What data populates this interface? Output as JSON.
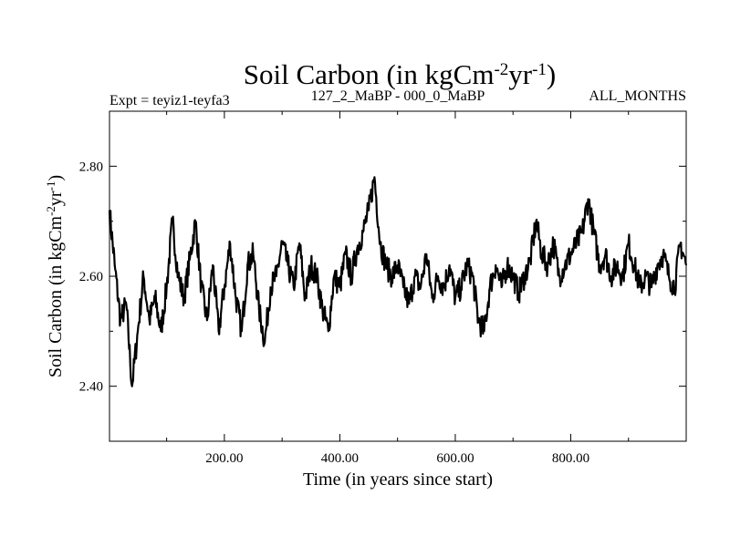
{
  "chart_data": {
    "type": "line",
    "title": "Soil Carbon (in kgCm",
    "title_exp1": "-2",
    "title_mid": "yr",
    "title_exp2": "-1",
    "title_end": ")",
    "subtitle_left": "Expt = teyiz1-teyfa3",
    "subtitle_center": "127_2_MaBP - 000_0_MaBP",
    "subtitle_right": "ALL_MONTHS",
    "xlabel": "Time (in years since start)",
    "ylabel": "Soil Carbon (in kgCm",
    "ylabel_exp1": "-2",
    "ylabel_mid": "yr",
    "ylabel_exp2": "-1",
    "ylabel_end": ")",
    "xlim": [
      1,
      1000
    ],
    "ylim": [
      2.3,
      2.9
    ],
    "xticks": [
      200,
      400,
      600,
      800
    ],
    "xtick_labels": [
      "200.00",
      "400.00",
      "600.00",
      "800.00"
    ],
    "yticks": [
      2.4,
      2.6,
      2.8
    ],
    "ytick_labels": [
      "2.40",
      "2.60",
      "2.80"
    ],
    "series": [
      {
        "name": "soil carbon",
        "x": [
          1,
          10,
          20,
          30,
          40,
          50,
          60,
          70,
          80,
          90,
          100,
          110,
          120,
          130,
          140,
          150,
          160,
          170,
          180,
          190,
          200,
          210,
          220,
          230,
          240,
          250,
          260,
          270,
          280,
          290,
          300,
          310,
          320,
          330,
          340,
          350,
          360,
          370,
          380,
          390,
          400,
          410,
          420,
          430,
          440,
          450,
          460,
          470,
          480,
          490,
          500,
          510,
          520,
          530,
          540,
          550,
          560,
          570,
          580,
          590,
          600,
          610,
          620,
          630,
          640,
          650,
          660,
          670,
          680,
          690,
          700,
          710,
          720,
          730,
          740,
          750,
          760,
          770,
          780,
          790,
          800,
          810,
          820,
          830,
          840,
          850,
          860,
          870,
          880,
          890,
          900,
          910,
          920,
          930,
          940,
          950,
          960,
          970,
          980,
          990,
          1000
        ],
        "values": [
          2.72,
          2.62,
          2.52,
          2.55,
          2.4,
          2.5,
          2.6,
          2.52,
          2.56,
          2.5,
          2.58,
          2.7,
          2.6,
          2.56,
          2.63,
          2.7,
          2.58,
          2.52,
          2.62,
          2.5,
          2.58,
          2.66,
          2.56,
          2.5,
          2.62,
          2.64,
          2.54,
          2.48,
          2.58,
          2.6,
          2.66,
          2.62,
          2.58,
          2.66,
          2.56,
          2.62,
          2.6,
          2.54,
          2.5,
          2.6,
          2.58,
          2.64,
          2.6,
          2.65,
          2.68,
          2.72,
          2.78,
          2.66,
          2.62,
          2.6,
          2.62,
          2.58,
          2.55,
          2.6,
          2.58,
          2.64,
          2.56,
          2.6,
          2.58,
          2.62,
          2.56,
          2.58,
          2.62,
          2.6,
          2.52,
          2.5,
          2.58,
          2.62,
          2.58,
          2.62,
          2.6,
          2.57,
          2.6,
          2.63,
          2.7,
          2.64,
          2.62,
          2.66,
          2.6,
          2.62,
          2.64,
          2.66,
          2.68,
          2.74,
          2.68,
          2.62,
          2.64,
          2.6,
          2.62,
          2.6,
          2.66,
          2.62,
          2.58,
          2.6,
          2.58,
          2.62,
          2.64,
          2.6,
          2.58,
          2.66,
          2.62
        ]
      }
    ]
  }
}
